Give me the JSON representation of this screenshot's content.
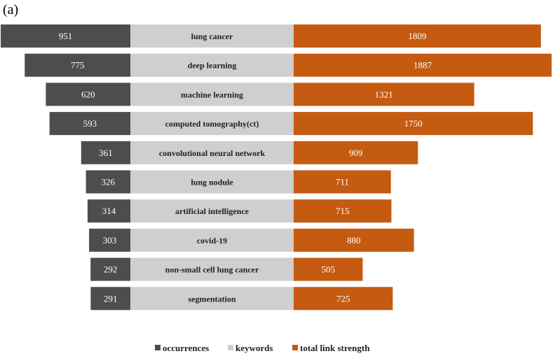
{
  "panel_label": "(a)",
  "chart_data": {
    "type": "bar",
    "orientation": "horizontal-diverging",
    "categories": [
      "lung cancer",
      "deep learning",
      "machine learning",
      "computed tomography(ct)",
      "convolutional neural network",
      "lung nodule",
      "artificial intelligence",
      "covid-19",
      "non-small cell lung cancer",
      "segmentation"
    ],
    "series": [
      {
        "name": "occurrences",
        "values": [
          951,
          775,
          620,
          593,
          361,
          326,
          314,
          303,
          292,
          291
        ],
        "color": "#4d4d4d",
        "side": "left"
      },
      {
        "name": "keywords",
        "color": "#d0cece",
        "side": "center"
      },
      {
        "name": "total link strength",
        "values": [
          1809,
          1887,
          1321,
          1750,
          909,
          711,
          715,
          880,
          505,
          725
        ],
        "color": "#c55a11",
        "side": "right"
      }
    ],
    "legend": "bottom",
    "grid": false
  }
}
